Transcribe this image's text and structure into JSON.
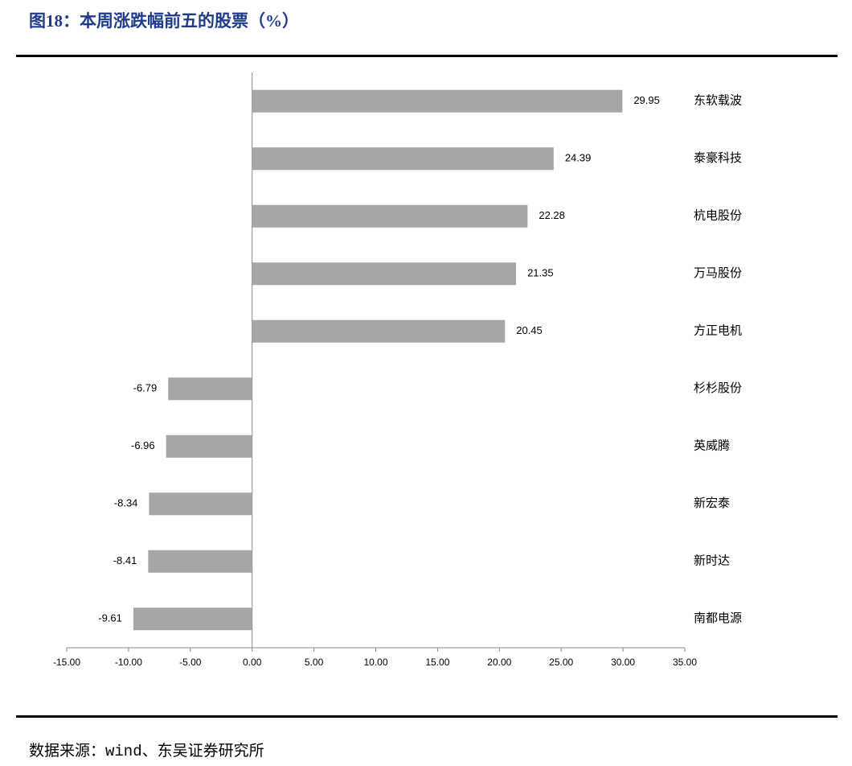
{
  "chart_data": {
    "type": "hbar",
    "title": "图18：本周涨跌幅前五的股票（%）",
    "source": "数据来源：wind、东吴证券研究所",
    "categories": [
      "东软载波",
      "泰豪科技",
      "杭电股份",
      "万马股份",
      "方正电机",
      "杉杉股份",
      "英威腾",
      "新宏泰",
      "新时达",
      "南都电源"
    ],
    "values": [
      29.95,
      24.39,
      22.28,
      21.35,
      20.45,
      -6.79,
      -6.96,
      -8.34,
      -8.41,
      -9.61
    ],
    "color": "#a6a6a6",
    "xlim": [
      -15,
      35
    ],
    "xticks": [
      {
        "value": -15,
        "label": "-15.00"
      },
      {
        "value": -10,
        "label": "-10.00"
      },
      {
        "value": -5,
        "label": "-5.00"
      },
      {
        "value": 0,
        "label": "0.00"
      },
      {
        "value": 5,
        "label": "5.00"
      },
      {
        "value": 10,
        "label": "10.00"
      },
      {
        "value": 15,
        "label": "15.00"
      },
      {
        "value": 20,
        "label": "20.00"
      },
      {
        "value": 25,
        "label": "25.00"
      },
      {
        "value": 30,
        "label": "30.00"
      },
      {
        "value": 35,
        "label": "35.00"
      }
    ]
  }
}
